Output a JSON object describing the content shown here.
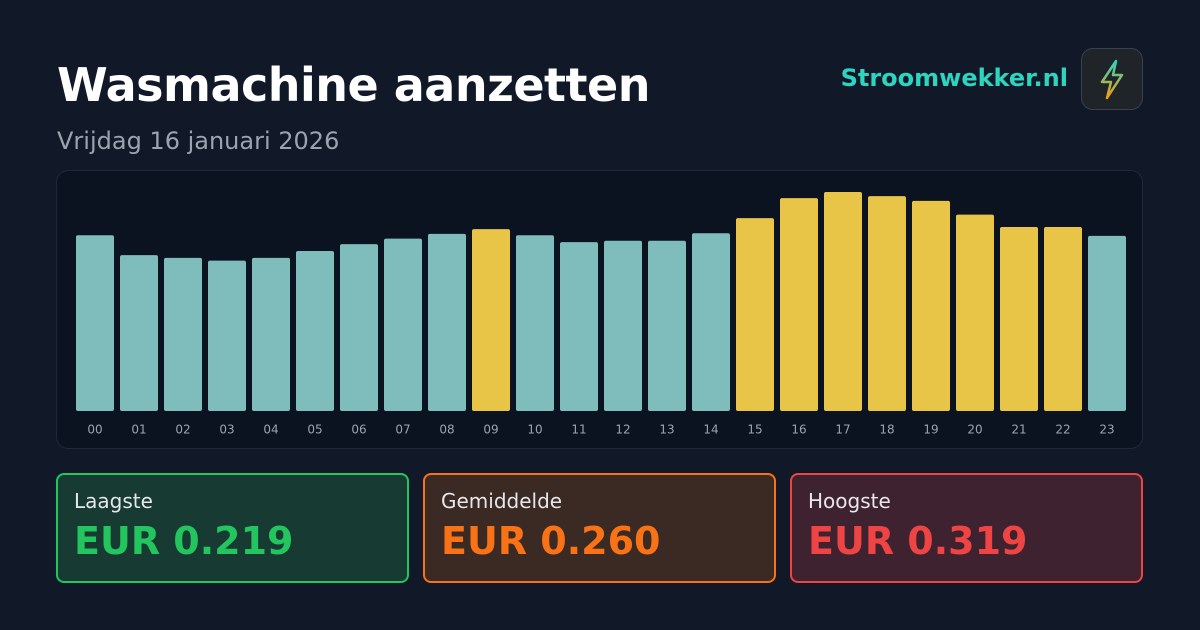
{
  "header": {
    "title": "Wasmachine aanzetten",
    "subtitle": "Vrijdag 16 januari 2026",
    "brand": "Stroomwekker.nl"
  },
  "chart_data": {
    "type": "bar",
    "categories": [
      "00",
      "01",
      "02",
      "03",
      "04",
      "05",
      "06",
      "07",
      "08",
      "09",
      "10",
      "11",
      "12",
      "13",
      "14",
      "15",
      "16",
      "17",
      "18",
      "19",
      "20",
      "21",
      "22",
      "23"
    ],
    "values": [
      0.256,
      0.227,
      0.223,
      0.219,
      0.223,
      0.233,
      0.243,
      0.251,
      0.258,
      0.265,
      0.256,
      0.246,
      0.248,
      0.248,
      0.259,
      0.281,
      0.31,
      0.319,
      0.313,
      0.306,
      0.286,
      0.268,
      0.268,
      0.255
    ],
    "colors": [
      "#7fbcbc",
      "#7fbcbc",
      "#7fbcbc",
      "#7fbcbc",
      "#7fbcbc",
      "#7fbcbc",
      "#7fbcbc",
      "#7fbcbc",
      "#7fbcbc",
      "#e8c547",
      "#7fbcbc",
      "#7fbcbc",
      "#7fbcbc",
      "#7fbcbc",
      "#7fbcbc",
      "#e8c547",
      "#e8c547",
      "#e8c547",
      "#e8c547",
      "#e8c547",
      "#e8c547",
      "#e8c547",
      "#e8c547",
      "#7fbcbc"
    ]
  },
  "stats": [
    {
      "label": "Laagste",
      "value": "EUR 0.219"
    },
    {
      "label": "Gemiddelde",
      "value": "EUR 0.260"
    },
    {
      "label": "Hoogste",
      "value": "EUR 0.319"
    }
  ]
}
